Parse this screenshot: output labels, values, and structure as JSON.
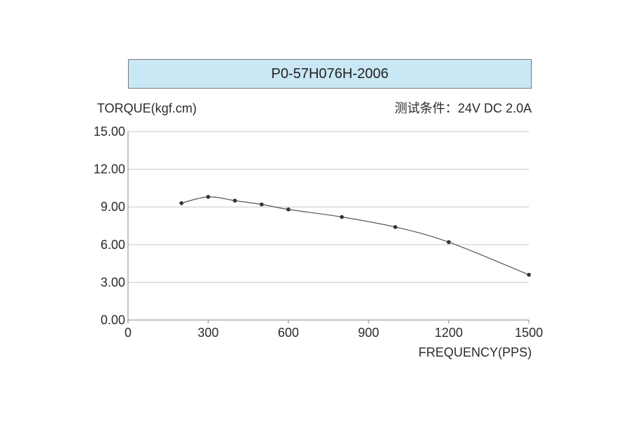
{
  "chart_data": {
    "type": "line",
    "title": "P0-57H076H-2006",
    "conditions": "测试条件：24V DC  2.0A",
    "ylabel": "TORQUE(kgf.cm)",
    "xlabel": "FREQUENCY(PPS)",
    "xlim": [
      0,
      1500
    ],
    "ylim": [
      0,
      15
    ],
    "x_ticks": [
      0,
      300,
      600,
      900,
      1200,
      1500
    ],
    "x_tick_labels": [
      "0",
      "300",
      "600",
      "900",
      "1200",
      "1500"
    ],
    "y_ticks": [
      0,
      3,
      6,
      9,
      12,
      15
    ],
    "y_tick_labels": [
      "0.00",
      "3.00",
      "6.00",
      "9.00",
      "12.00",
      "15.00"
    ],
    "grid": "horizontal",
    "series": [
      {
        "x": [
          200,
          300,
          400,
          500,
          600,
          800,
          1000,
          1200,
          1500
        ],
        "y": [
          9.3,
          9.8,
          9.5,
          9.2,
          8.8,
          8.2,
          7.4,
          6.2,
          3.6
        ]
      }
    ],
    "colors": {
      "line": "#555555",
      "marker": "#333333",
      "grid": "#c8c8c8",
      "axis": "#8a8a8a",
      "title_background": "#c9e7f5"
    }
  }
}
